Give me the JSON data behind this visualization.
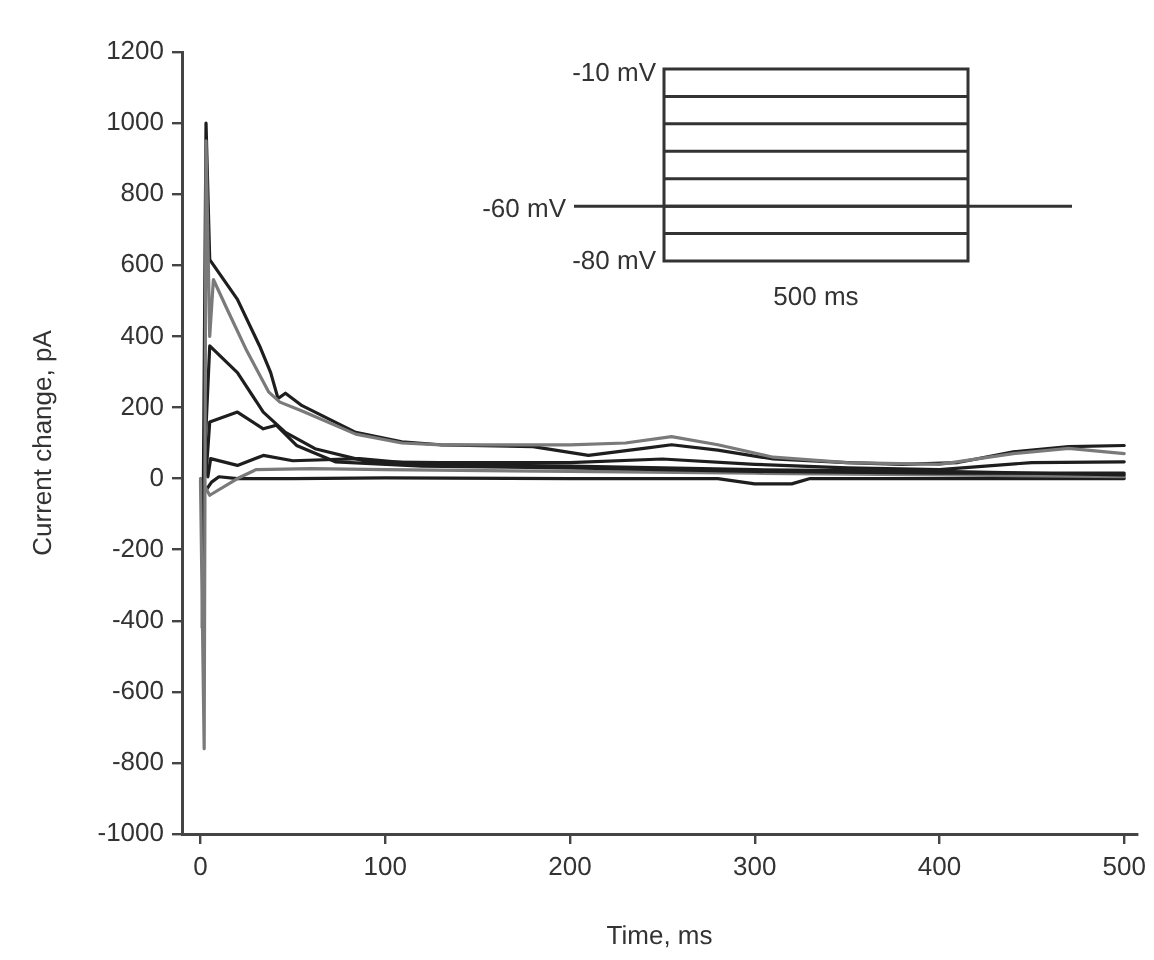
{
  "chart_data": {
    "type": "line",
    "xlabel": "Time, ms",
    "ylabel": "Current change, pA",
    "xlim": [
      -10,
      507
    ],
    "xticks": [
      0,
      100,
      200,
      300,
      400,
      500
    ],
    "ylim": [
      -1000,
      1200
    ],
    "yticks": [
      -1000,
      -800,
      -600,
      -400,
      -200,
      0,
      200,
      400,
      600,
      800,
      1000,
      1200
    ],
    "annotations": [
      "-10 mV",
      "-60 mV",
      "-80 mV",
      "500 ms"
    ],
    "series": [
      {
        "color": "#7a7a7a",
        "x": [
          0,
          2,
          3,
          5,
          7,
          15,
          25,
          37,
          43,
          55,
          84,
          109,
          130,
          170,
          200,
          230,
          255,
          280,
          310,
          350,
          400,
          440,
          470,
          500
        ],
        "values": [
          -5,
          -760,
          950,
          400,
          560,
          470,
          360,
          243,
          215,
          190,
          125,
          100,
          95,
          95,
          95,
          100,
          118,
          95,
          60,
          45,
          40,
          70,
          85,
          70
        ]
      },
      {
        "color": "#1e1e1e",
        "x": [
          1,
          3,
          5,
          20,
          32,
          38,
          42,
          46,
          55,
          84,
          109,
          130,
          180,
          210,
          240,
          255,
          280,
          310,
          350,
          380,
          410,
          440,
          470,
          500
        ],
        "values": [
          -420,
          1000,
          616,
          504,
          373,
          298,
          225,
          240,
          205,
          130,
          103,
          95,
          90,
          65,
          85,
          95,
          80,
          55,
          45,
          40,
          45,
          75,
          90,
          93
        ]
      },
      {
        "color": "#1e1e1e",
        "x": [
          2,
          5,
          20,
          34,
          46,
          62,
          91,
          130,
          200,
          250,
          300,
          350,
          400,
          450,
          500
        ],
        "values": [
          30,
          373,
          298,
          187,
          130,
          84,
          47,
          45,
          45,
          55,
          40,
          30,
          25,
          45,
          47
        ]
      },
      {
        "color": "#1e1e1e",
        "x": [
          3,
          5,
          20,
          34,
          41,
          52,
          73,
          120,
          200,
          300,
          400,
          500
        ],
        "values": [
          10,
          159,
          187,
          140,
          150,
          93,
          47,
          35,
          30,
          20,
          15,
          15
        ]
      },
      {
        "color": "#1e1e1e",
        "x": [
          4,
          5.5,
          20,
          34,
          50,
          86,
          120,
          200,
          300,
          400,
          500
        ],
        "values": [
          5,
          56,
          37,
          65,
          50,
          56,
          40,
          35,
          25,
          20,
          10
        ]
      },
      {
        "color": "#7a7a7a",
        "x": [
          0,
          5,
          20,
          30,
          60,
          100,
          200,
          300,
          400,
          500
        ],
        "values": [
          0,
          -47,
          0,
          25,
          28,
          25,
          20,
          15,
          10,
          5
        ]
      },
      {
        "color": "#1e1e1e",
        "x": [
          0.5,
          2,
          6,
          10,
          20,
          50,
          100,
          200,
          280,
          300,
          320,
          330,
          400,
          500
        ],
        "values": [
          -10,
          -40,
          -10,
          5,
          0,
          0,
          2,
          0,
          0,
          -15,
          -15,
          0,
          0,
          0
        ]
      }
    ]
  }
}
